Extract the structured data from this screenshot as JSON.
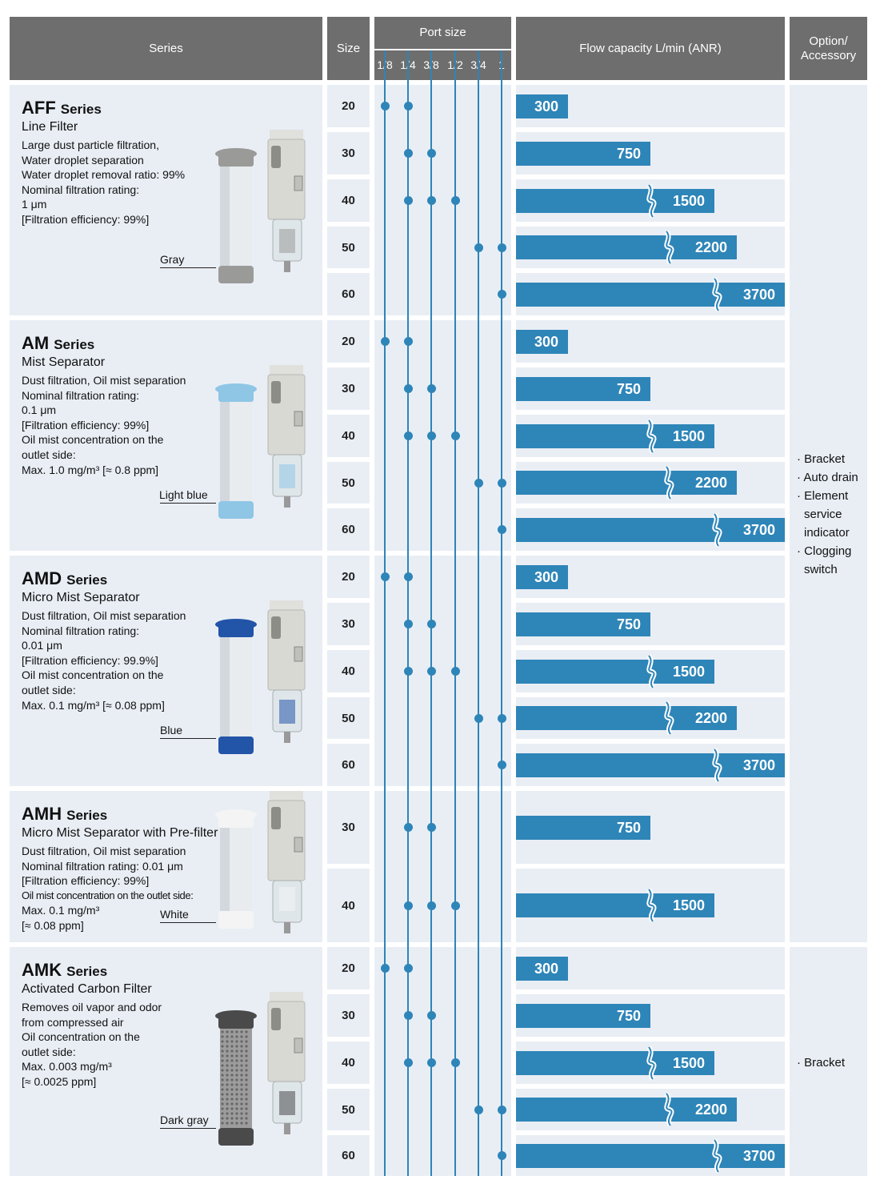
{
  "header": {
    "series": "Series",
    "size": "Size",
    "port_size": "Port size",
    "ports": [
      "1/8",
      "1/4",
      "3/8",
      "1/2",
      "3/4",
      "1"
    ],
    "flow": "Flow capacity L/min (ANR)",
    "option_line1": "Option/",
    "option_line2": "Accessory"
  },
  "series": [
    {
      "name": "AFF",
      "suffix": "Series",
      "type": "Line Filter",
      "desc": [
        "Large dust particle filtration,",
        "Water droplet separation",
        "Water droplet removal ratio: 99%",
        "Nominal filtration rating:",
        "1 μm",
        " [Filtration efficiency: 99%]"
      ],
      "color_label": "Gray",
      "element_color": "#9a9a98",
      "rows": [
        {
          "size": "20",
          "ports": [
            0,
            1
          ],
          "flow": 300
        },
        {
          "size": "30",
          "ports": [
            1,
            2
          ],
          "flow": 750
        },
        {
          "size": "40",
          "ports": [
            1,
            2,
            3
          ],
          "flow": 1500
        },
        {
          "size": "50",
          "ports": [
            4,
            5
          ],
          "flow": 2200
        },
        {
          "size": "60",
          "ports": [
            5
          ],
          "flow": 3700
        }
      ]
    },
    {
      "name": "AM",
      "suffix": "Series",
      "type": "Mist Separator",
      "desc": [
        "Dust filtration, Oil mist separation",
        "Nominal filtration rating:",
        "0.1 μm",
        "[Filtration efficiency: 99%]",
        "Oil mist concentration on the",
        "outlet side:",
        " Max. 1.0 mg/m³ [≈ 0.8 ppm]"
      ],
      "color_label": "Light blue",
      "element_color": "#8fc6e6",
      "rows": [
        {
          "size": "20",
          "ports": [
            0,
            1
          ],
          "flow": 300
        },
        {
          "size": "30",
          "ports": [
            1,
            2
          ],
          "flow": 750
        },
        {
          "size": "40",
          "ports": [
            1,
            2,
            3
          ],
          "flow": 1500
        },
        {
          "size": "50",
          "ports": [
            4,
            5
          ],
          "flow": 2200
        },
        {
          "size": "60",
          "ports": [
            5
          ],
          "flow": 3700
        }
      ]
    },
    {
      "name": "AMD",
      "suffix": "Series",
      "type": "Micro Mist Separator",
      "desc": [
        "Dust filtration, Oil mist separation",
        "Nominal filtration rating:",
        "0.01 μm",
        "[Filtration efficiency: 99.9%]",
        "Oil mist concentration on the",
        "outlet side:",
        " Max. 0.1 mg/m³ [≈ 0.08 ppm]"
      ],
      "color_label": "Blue",
      "element_color": "#2254a8",
      "rows": [
        {
          "size": "20",
          "ports": [
            0,
            1
          ],
          "flow": 300
        },
        {
          "size": "30",
          "ports": [
            1,
            2
          ],
          "flow": 750
        },
        {
          "size": "40",
          "ports": [
            1,
            2,
            3
          ],
          "flow": 1500
        },
        {
          "size": "50",
          "ports": [
            4,
            5
          ],
          "flow": 2200
        },
        {
          "size": "60",
          "ports": [
            5
          ],
          "flow": 3700
        }
      ]
    },
    {
      "name": "AMH",
      "suffix": "Series",
      "type": "Micro Mist Separator with Pre-filter",
      "desc": [
        "Dust filtration, Oil mist separation",
        "Nominal filtration rating: 0.01 μm",
        "[Filtration efficiency: 99%]",
        "Oil mist concentration on the outlet side:",
        "Max. 0.1 mg/m³",
        " [≈ 0.08 ppm]"
      ],
      "color_label": "White",
      "element_color": "#f4f4f4",
      "rows": [
        {
          "size": "30",
          "ports": [
            1,
            2
          ],
          "flow": 750
        },
        {
          "size": "40",
          "ports": [
            1,
            2,
            3
          ],
          "flow": 1500
        }
      ]
    },
    {
      "name": "AMK",
      "suffix": "Series",
      "type": "Activated Carbon Filter",
      "desc": [
        "Removes oil vapor and odor",
        "from compressed air",
        "Oil concentration on the",
        "outlet side:",
        "Max.  0.003 mg/m³",
        " [≈ 0.0025 ppm]"
      ],
      "color_label": "Dark gray",
      "element_color": "#4a4a4a",
      "rows": [
        {
          "size": "20",
          "ports": [
            0,
            1
          ],
          "flow": 300
        },
        {
          "size": "30",
          "ports": [
            1,
            2
          ],
          "flow": 750
        },
        {
          "size": "40",
          "ports": [
            1,
            2,
            3
          ],
          "flow": 1500
        },
        {
          "size": "50",
          "ports": [
            4,
            5
          ],
          "flow": 2200
        },
        {
          "size": "60",
          "ports": [
            5
          ],
          "flow": 3700
        }
      ]
    }
  ],
  "options_group1": [
    "Bracket",
    "Auto drain",
    "Element service indicator",
    "Clogging switch"
  ],
  "options_group2": [
    "Bracket"
  ],
  "colors": {
    "header_bg": "#6e6e6e",
    "cell_bg": "#e9eef5",
    "accent": "#2e85b8"
  }
}
